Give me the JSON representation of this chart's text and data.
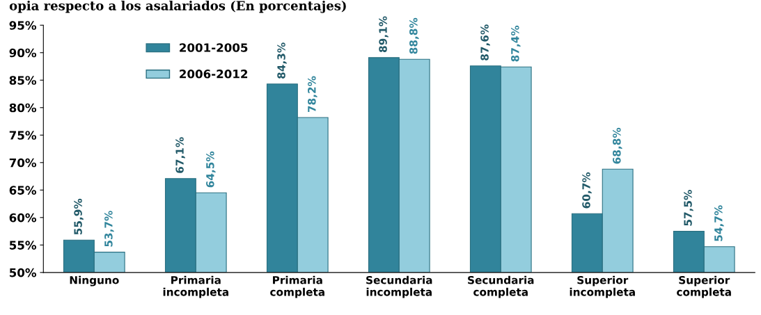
{
  "chart_data": {
    "type": "bar",
    "title": "opia respecto a los asalariados (En porcentajes)",
    "categories": [
      "Ninguno",
      "Primaria\nincompleta",
      "Primaria\ncompleta",
      "Secundaria\nincompleta",
      "Secundaria\ncompleta",
      "Superior\nincompleta",
      "Superior\ncompleta"
    ],
    "series": [
      {
        "name": "2001-2005",
        "color": "#31849b",
        "values": [
          55.9,
          67.1,
          84.3,
          89.1,
          87.6,
          60.7,
          57.5
        ],
        "value_labels": [
          "55,9%",
          "67,1%",
          "84,3%",
          "89,1%",
          "87,6%",
          "60,7%",
          "57,5%"
        ]
      },
      {
        "name": "2006-2012",
        "color": "#93cddd",
        "values": [
          53.7,
          64.5,
          78.2,
          88.8,
          87.4,
          68.8,
          54.7
        ],
        "value_labels": [
          "53,7%",
          "64,5%",
          "78,2%",
          "88,8%",
          "87,4%",
          "68,8%",
          "54,7%"
        ]
      }
    ],
    "ylim": [
      50,
      95
    ],
    "yticks": [
      {
        "value": 50,
        "label": "50%"
      },
      {
        "value": 55,
        "label": "55%"
      },
      {
        "value": 60,
        "label": "60%"
      },
      {
        "value": 65,
        "label": "65%"
      },
      {
        "value": 70,
        "label": "70%"
      },
      {
        "value": 75,
        "label": "75%"
      },
      {
        "value": 80,
        "label": "80%"
      },
      {
        "value": 85,
        "label": "85%"
      },
      {
        "value": 90,
        "label": "90%"
      },
      {
        "value": 95,
        "label": "95%"
      }
    ],
    "grid": false,
    "legend": "top left"
  }
}
